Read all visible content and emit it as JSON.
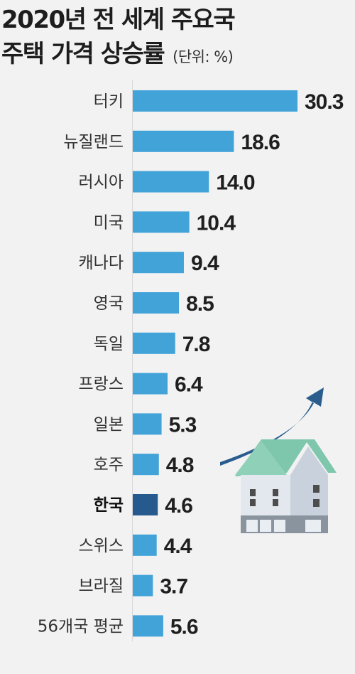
{
  "title": {
    "line1": "2020년 전 세계 주요국",
    "line2": "주택 가격 상승률",
    "unit": "(단위: %)"
  },
  "colors": {
    "bar": "#41a3d8",
    "bar_highlight": "#265a8f",
    "background": "#f2f2f2",
    "arrow": "#2a5d8e",
    "roof": "#7ec7ad",
    "house_wall": "#d9e0e8"
  },
  "chart_data": {
    "type": "bar",
    "orientation": "horizontal",
    "title": "2020년 전 세계 주요국 주택 가격 상승률",
    "unit": "(단위: %)",
    "categories": [
      "터키",
      "뉴질랜드",
      "러시아",
      "미국",
      "캐나다",
      "영국",
      "독일",
      "프랑스",
      "일본",
      "호주",
      "한국",
      "스위스",
      "브라질",
      "56개국 평균"
    ],
    "values": [
      30.3,
      18.6,
      14.0,
      10.4,
      9.4,
      8.5,
      7.8,
      6.4,
      5.3,
      4.8,
      4.6,
      4.4,
      3.7,
      5.6
    ],
    "value_labels": [
      "30.3",
      "18.6",
      "14.0",
      "10.4",
      "9.4",
      "8.5",
      "7.8",
      "6.4",
      "5.3",
      "4.8",
      "4.6",
      "4.4",
      "3.7",
      "5.6"
    ],
    "highlight": "한국",
    "xlim": [
      0,
      30.3
    ],
    "grid": false,
    "legend": "none"
  }
}
